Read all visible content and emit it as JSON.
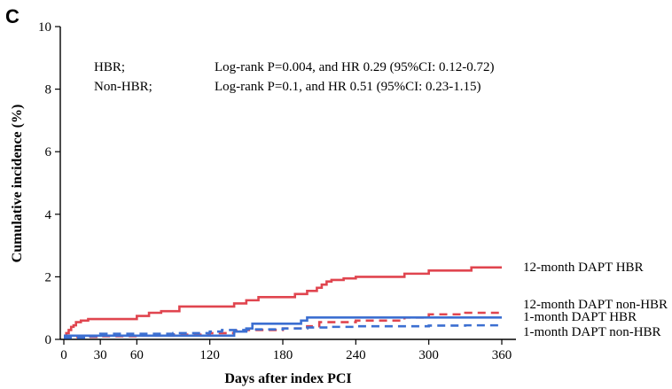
{
  "chart_data": {
    "type": "line",
    "panel_label": "C",
    "xlabel": "Days after index PCI",
    "ylabel": "Cumulative incidence (%)",
    "xlim": [
      0,
      365
    ],
    "ylim": [
      0,
      10
    ],
    "x_ticks": [
      0,
      30,
      60,
      120,
      180,
      240,
      300,
      360
    ],
    "y_ticks": [
      0,
      2,
      4,
      6,
      8,
      10
    ],
    "grid": false,
    "annotations": [
      {
        "group": "HBR;",
        "text": "Log-rank P=0.004, and HR 0.29 (95%CI: 0.12-0.72)"
      },
      {
        "group": "Non-HBR;",
        "text": "Log-rank P=0.1, and HR 0.51 (95%CI: 0.23-1.15)"
      }
    ],
    "series": [
      {
        "name": "12-month DAPT HBR",
        "color": "#e0454f",
        "dash": "solid",
        "x": [
          0,
          2,
          4,
          6,
          8,
          10,
          14,
          20,
          60,
          70,
          80,
          95,
          100,
          110,
          120,
          130,
          140,
          150,
          160,
          170,
          180,
          190,
          200,
          208,
          212,
          216,
          220,
          230,
          240,
          260,
          280,
          300,
          320,
          335,
          360
        ],
        "y": [
          0.1,
          0.2,
          0.3,
          0.4,
          0.45,
          0.55,
          0.6,
          0.65,
          0.75,
          0.85,
          0.9,
          1.05,
          1.05,
          1.05,
          1.05,
          1.05,
          1.15,
          1.25,
          1.35,
          1.35,
          1.35,
          1.45,
          1.55,
          1.65,
          1.75,
          1.85,
          1.9,
          1.95,
          2.0,
          2.0,
          2.1,
          2.2,
          2.2,
          2.3,
          2.3
        ]
      },
      {
        "name": "12-month DAPT non-HBR",
        "color": "#e0454f",
        "dash": "dashed",
        "x": [
          0,
          10,
          30,
          60,
          90,
          120,
          140,
          150,
          180,
          200,
          210,
          240,
          280,
          300,
          330,
          360
        ],
        "y": [
          0.05,
          0.08,
          0.1,
          0.12,
          0.15,
          0.2,
          0.28,
          0.3,
          0.35,
          0.42,
          0.55,
          0.6,
          0.7,
          0.8,
          0.85,
          0.88
        ]
      },
      {
        "name": "1-month DAPT HBR",
        "color": "#3c6fd1",
        "dash": "solid",
        "x": [
          0,
          10,
          60,
          120,
          135,
          140,
          150,
          155,
          190,
          195,
          200,
          240,
          280,
          300,
          330,
          360
        ],
        "y": [
          0.12,
          0.12,
          0.12,
          0.12,
          0.12,
          0.25,
          0.35,
          0.5,
          0.5,
          0.6,
          0.7,
          0.7,
          0.7,
          0.7,
          0.7,
          0.7
        ]
      },
      {
        "name": "1-month DAPT non-HBR",
        "color": "#3c6fd1",
        "dash": "dashed",
        "x": [
          0,
          20,
          30,
          60,
          90,
          120,
          130,
          150,
          180,
          200,
          220,
          240,
          300,
          330,
          360
        ],
        "y": [
          0.05,
          0.1,
          0.18,
          0.18,
          0.2,
          0.25,
          0.3,
          0.32,
          0.35,
          0.38,
          0.4,
          0.42,
          0.44,
          0.45,
          0.45
        ]
      }
    ],
    "legend_placement": "right, at line ends"
  }
}
